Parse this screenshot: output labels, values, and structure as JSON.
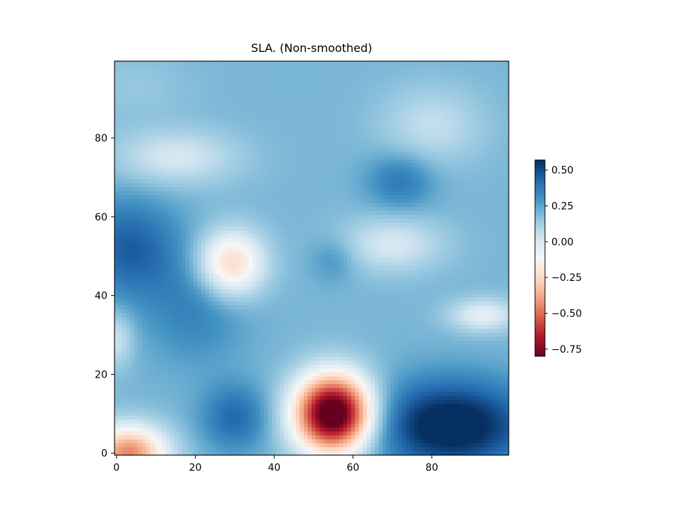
{
  "chart_data": {
    "type": "heatmap",
    "title": "SLA. (Non-smoothed)",
    "xlabel": "",
    "ylabel": "",
    "xlim": [
      -0.5,
      99.5
    ],
    "ylim": [
      99.5,
      -0.5
    ],
    "y_axis_inverted": true,
    "grid": false,
    "x_ticks": [
      0,
      20,
      40,
      60,
      80
    ],
    "x_tick_labels": [
      "0",
      "20",
      "40",
      "60",
      "80"
    ],
    "y_ticks": [
      0,
      20,
      40,
      60,
      80
    ],
    "y_tick_labels": [
      "0",
      "20",
      "40",
      "60",
      "80"
    ],
    "grid_size": [
      100,
      100
    ],
    "colormap": "RdBu",
    "colorbar": {
      "placement": "right",
      "vmin": -0.8,
      "vmax": 0.57,
      "ticks": [
        0.5,
        0.25,
        0.0,
        -0.25,
        -0.5,
        -0.75
      ],
      "tick_labels": [
        "0.50",
        "0.25",
        "0.00",
        "−0.25",
        "−0.50",
        "−0.75"
      ]
    },
    "field": {
      "baseline": 0.2,
      "features": [
        {
          "x": 15,
          "y": 24,
          "amplitude": -0.2,
          "sigma_x": 11,
          "sigma_y": 5
        },
        {
          "x": 80,
          "y": 16,
          "amplitude": -0.15,
          "sigma_x": 9,
          "sigma_y": 7
        },
        {
          "x": 5,
          "y": 6,
          "amplitude": -0.05,
          "sigma_x": 10,
          "sigma_y": 6
        },
        {
          "x": 72,
          "y": 30,
          "amplitude": 0.18,
          "sigma_x": 6,
          "sigma_y": 5
        },
        {
          "x": 3,
          "y": 47,
          "amplitude": 0.25,
          "sigma_x": 9,
          "sigma_y": 9
        },
        {
          "x": 20,
          "y": 62,
          "amplitude": 0.15,
          "sigma_x": 9,
          "sigma_y": 10
        },
        {
          "x": 29,
          "y": 51,
          "amplitude": -0.48,
          "sigma_x": 6,
          "sigma_y": 6
        },
        {
          "x": 70,
          "y": 46,
          "amplitude": -0.2,
          "sigma_x": 9,
          "sigma_y": 5
        },
        {
          "x": 55,
          "y": 50,
          "amplitude": 0.1,
          "sigma_x": 4,
          "sigma_y": 4
        },
        {
          "x": 93,
          "y": 64,
          "amplitude": -0.25,
          "sigma_x": 6,
          "sigma_y": 3
        },
        {
          "x": 0,
          "y": 70,
          "amplitude": -0.18,
          "sigma_x": 3,
          "sigma_y": 5
        },
        {
          "x": 55,
          "y": 89,
          "amplitude": -1.15,
          "sigma_x": 7,
          "sigma_y": 7
        },
        {
          "x": 85,
          "y": 92,
          "amplitude": 0.45,
          "sigma_x": 14,
          "sigma_y": 8
        },
        {
          "x": 30,
          "y": 90,
          "amplitude": 0.22,
          "sigma_x": 6,
          "sigma_y": 6
        },
        {
          "x": 3,
          "y": 99,
          "amplitude": -0.65,
          "sigma_x": 7,
          "sigma_y": 5
        }
      ]
    }
  }
}
